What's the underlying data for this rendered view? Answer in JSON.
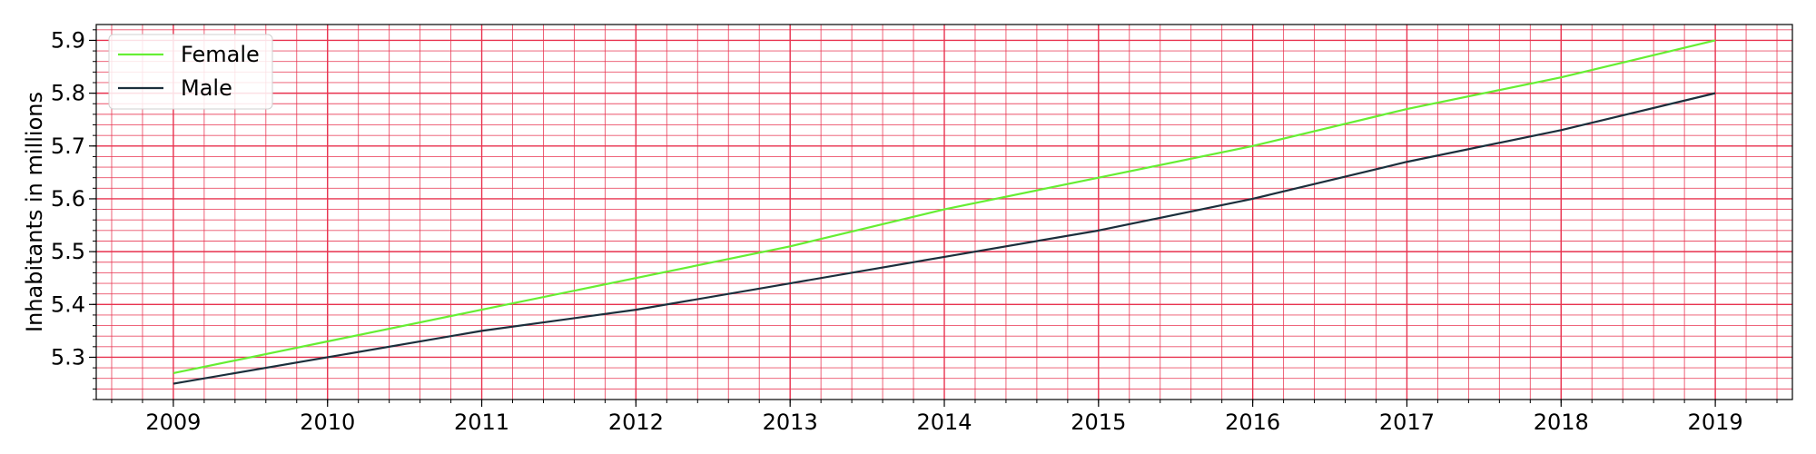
{
  "chart_data": {
    "type": "line",
    "title": "",
    "xlabel": "",
    "ylabel": "Inhabitants in millions",
    "x": [
      2009,
      2010,
      2011,
      2012,
      2013,
      2014,
      2015,
      2016,
      2017,
      2018,
      2019
    ],
    "x_ticks": [
      "2009",
      "2010",
      "2011",
      "2012",
      "2013",
      "2014",
      "2015",
      "2016",
      "2017",
      "2018",
      "2019"
    ],
    "y_ticks": [
      "5.3",
      "5.4",
      "5.5",
      "5.6",
      "5.7",
      "5.8",
      "5.9"
    ],
    "xlim": [
      2008.5,
      2019.5
    ],
    "ylim": [
      5.22,
      5.93
    ],
    "grid": true,
    "grid_color": "#e8334f",
    "legend_position": "upper left",
    "series": [
      {
        "name": "Female",
        "color": "#66ee33",
        "values": [
          5.27,
          5.33,
          5.39,
          5.45,
          5.51,
          5.58,
          5.64,
          5.7,
          5.77,
          5.83,
          5.9
        ]
      },
      {
        "name": "Male",
        "color": "#1b2f3c",
        "values": [
          5.25,
          5.3,
          5.35,
          5.39,
          5.44,
          5.49,
          5.54,
          5.6,
          5.67,
          5.73,
          5.8
        ]
      }
    ]
  }
}
